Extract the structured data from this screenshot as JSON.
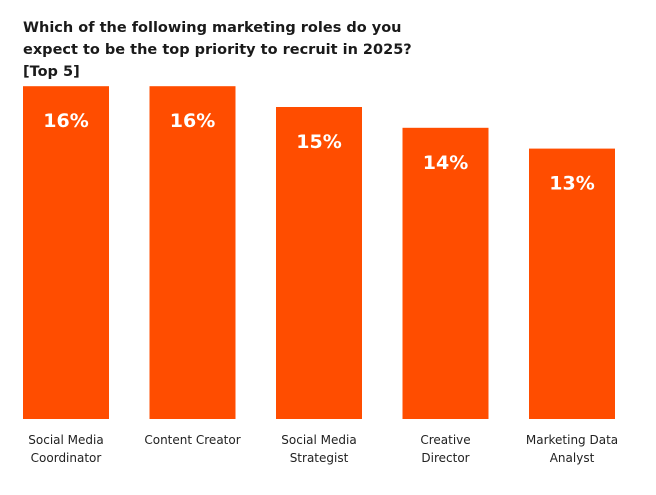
{
  "chart_data": {
    "type": "bar",
    "title_lines": [
      "Which of the following marketing roles do you",
      "expect to be the top priority to recruit in 2025? [Top 5]"
    ],
    "categories": [
      [
        "Social Media",
        "Coordinator"
      ],
      [
        "Content Creator"
      ],
      [
        "Social Media",
        "Strategist"
      ],
      [
        "Creative",
        "Director"
      ],
      [
        "Marketing Data",
        "Analyst"
      ]
    ],
    "values": [
      16,
      16,
      15,
      14,
      13
    ],
    "value_labels": [
      "16%",
      "16%",
      "15%",
      "14%",
      "13%"
    ],
    "bar_color": "#FF4D00",
    "ylim": [
      0,
      16
    ],
    "grid": false,
    "legend": "none"
  }
}
